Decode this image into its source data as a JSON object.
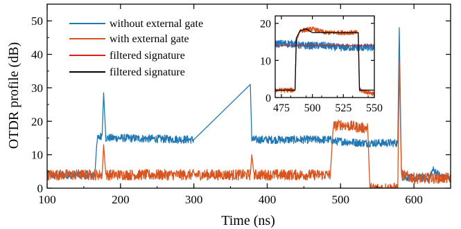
{
  "chart_data": [
    {
      "type": "line",
      "xlabel": "Time (ns)",
      "ylabel": "OTDR profile (dB)",
      "xlim": [
        100,
        650
      ],
      "ylim": [
        0,
        55
      ],
      "xticks": [
        100,
        200,
        300,
        400,
        500,
        600
      ],
      "yticks": [
        0,
        10,
        20,
        30,
        40,
        50
      ],
      "legend_placement": "top-left",
      "grid": false,
      "series": [
        {
          "name": "without  external gate",
          "color": "#1f77b4",
          "x": [
            100,
            165,
            168,
            175,
            177,
            180,
            200,
            300,
            377,
            379,
            382,
            400,
            486,
            490,
            500,
            530,
            537,
            560,
            578,
            580,
            583,
            600,
            620,
            626,
            640,
            650
          ],
          "values": [
            4,
            4,
            14.5,
            16,
            28.5,
            15,
            15,
            14.5,
            31,
            14.5,
            14.5,
            14.5,
            14.5,
            14,
            14,
            13.5,
            13.5,
            13.5,
            13.5,
            48,
            3.5,
            3,
            3,
            5.5,
            3,
            3
          ]
        },
        {
          "name": "with external gate",
          "color": "#d9531e",
          "x": [
            100,
            165,
            175,
            177,
            180,
            300,
            377,
            379,
            382,
            486,
            490,
            500,
            530,
            537,
            540,
            578,
            580,
            583,
            600,
            650
          ],
          "values": [
            4,
            4,
            4,
            13,
            4,
            4,
            4,
            10,
            4,
            4,
            18.5,
            19,
            18,
            18,
            0,
            0,
            38,
            4,
            3,
            3
          ]
        },
        {
          "name": "filtered signature",
          "color": "#e31a1c"
        },
        {
          "name": "filtered signature",
          "color": "#000000"
        }
      ]
    },
    {
      "type": "line",
      "xlim": [
        470,
        550
      ],
      "ylim": [
        0,
        22
      ],
      "xticks": [
        475,
        500,
        525,
        550
      ],
      "yticks": [
        0,
        10,
        20
      ],
      "series": [
        {
          "name": "without  external gate",
          "color": "#1f77b4",
          "x": [
            470,
            480,
            487,
            490,
            500,
            510,
            520,
            530,
            537,
            540,
            550
          ],
          "values": [
            14.5,
            14.5,
            14.5,
            14,
            14,
            14,
            13.5,
            13.5,
            13.5,
            13.5,
            13.5
          ]
        },
        {
          "name": "with external gate",
          "color": "#d9531e",
          "x": [
            470,
            486,
            487,
            490,
            500,
            510,
            520,
            530,
            537,
            538,
            550
          ],
          "values": [
            2,
            2,
            15,
            18,
            18.5,
            17.5,
            17.5,
            17.5,
            17.5,
            2,
            1
          ]
        },
        {
          "name": "filtered signature",
          "color": "#e31a1c",
          "x": [
            470,
            550
          ],
          "values": [
            14,
            14
          ]
        },
        {
          "name": "filtered signature",
          "color": "#000000",
          "x": [
            470,
            486,
            487,
            490,
            495,
            500,
            537,
            538,
            550
          ],
          "values": [
            2,
            2,
            16,
            18,
            18.5,
            17.5,
            17.5,
            2,
            2
          ]
        }
      ]
    }
  ]
}
